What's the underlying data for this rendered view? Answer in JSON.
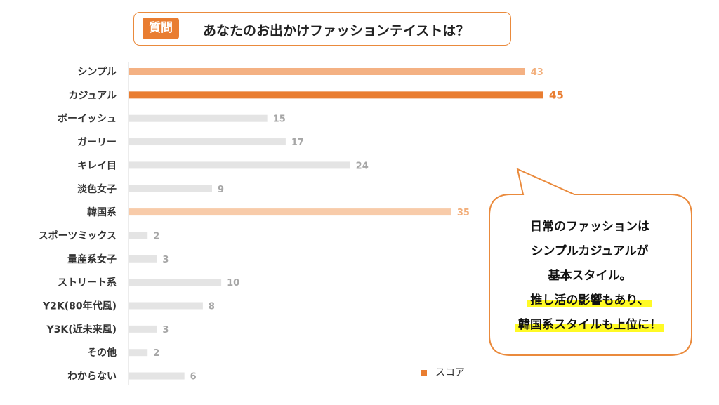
{
  "question": {
    "badge": "質問",
    "text": "あなたのお出かけファッションテイストは？"
  },
  "callout": {
    "lines": [
      "日常のファッションは",
      "シンプルカジュアルが",
      "基本スタイル。"
    ],
    "highlight_lines": [
      "推し活の影響もあり、",
      "韓国系スタイルも上位に！"
    ]
  },
  "legend": {
    "label": "スコア"
  },
  "colors": {
    "accent": "#e97d31",
    "highlight_bar": "#f4b183",
    "light_bar": "#f8cba9",
    "gray_bar": "#e4e4e4",
    "highlight_label": "#f2ae7a",
    "gray_label": "#a6a6a6"
  },
  "chart_data": {
    "type": "bar",
    "orientation": "horizontal",
    "categories": [
      "シンプル",
      "カジュアル",
      "ボーイッシュ",
      "ガーリー",
      "キレイ目",
      "淡色女子",
      "韓国系",
      "スポーツミックス",
      "量産系女子",
      "ストリート系",
      "Y2K(80年代風)",
      "Y3K(近未来風)",
      "その他",
      "わからない"
    ],
    "series": [
      {
        "name": "スコア",
        "values": [
          43,
          45,
          15,
          17,
          24,
          9,
          35,
          2,
          3,
          10,
          8,
          3,
          2,
          6
        ]
      }
    ],
    "value_labels": [
      "43",
      "45",
      "15",
      "17",
      "24",
      "9",
      "35",
      "2",
      "3",
      "10",
      "8",
      "3",
      "2",
      "6"
    ],
    "bar_styles": [
      "highlight",
      "accent",
      "gray",
      "gray",
      "gray",
      "gray",
      "light",
      "gray",
      "gray",
      "gray",
      "gray",
      "gray",
      "gray",
      "gray"
    ],
    "xlim": [
      0,
      45
    ],
    "legend_position": "bottom"
  }
}
